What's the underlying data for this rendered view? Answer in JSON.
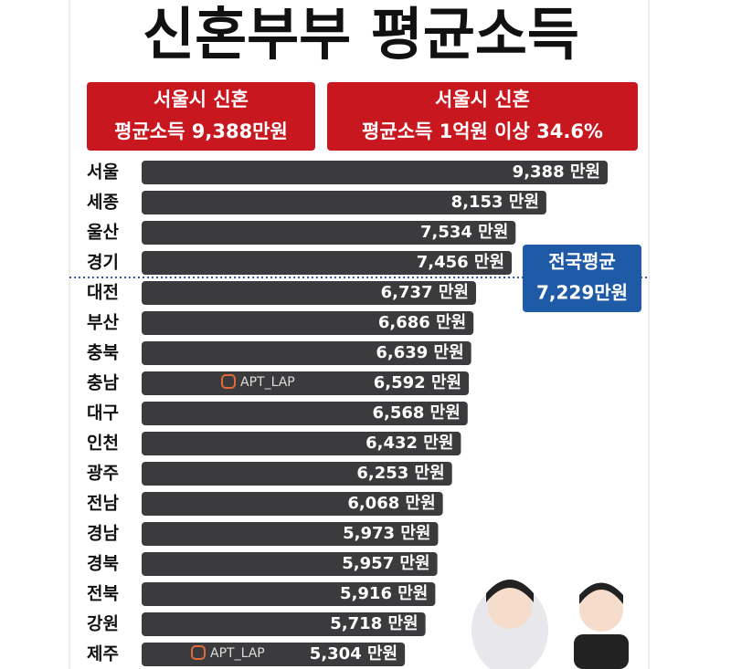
{
  "title": "신혼부부 평균소득",
  "boxes": [
    {
      "line1": "서울시 신혼",
      "line2": "평균소득 9,388만원"
    },
    {
      "line1": "서울시 신혼",
      "line2": "평균소득 1억원 이상 34.6%"
    }
  ],
  "average": {
    "title": "전국평균",
    "text": "7,229만원"
  },
  "watermarks": [
    "APT_LAP",
    "APT_LAP"
  ],
  "chart_data": {
    "type": "bar",
    "orientation": "horizontal",
    "color": "#3b3b3d",
    "categories": [
      "서울",
      "세종",
      "울산",
      "경기",
      "대전",
      "부산",
      "충북",
      "충남",
      "대구",
      "인천",
      "광주",
      "전남",
      "경남",
      "경북",
      "전북",
      "강원",
      "제주"
    ],
    "values": [
      9388,
      8153,
      7534,
      7456,
      6737,
      6686,
      6639,
      6592,
      6568,
      6432,
      6253,
      6068,
      5973,
      5957,
      5916,
      5718,
      5304
    ],
    "value_labels": [
      "9,388 만원",
      "8,153 만원",
      "7,534 만원",
      "7,456 만원",
      "6,737 만원",
      "6,686 만원",
      "6,639 만원",
      "6,592 만원",
      "6,568 만원",
      "6,432 만원",
      "6,253 만원",
      "6,068 만원",
      "5,973 만원",
      "5,957 만원",
      "5,916 만원",
      "5,718 만원",
      "5,304 만원"
    ]
  }
}
